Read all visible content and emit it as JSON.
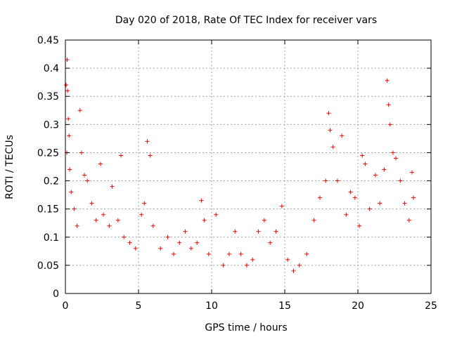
{
  "chart_data": {
    "type": "scatter",
    "title": "Day 020 of 2018, Rate Of TEC Index for receiver vars",
    "xlabel": "GPS time / hours",
    "ylabel": "ROTI / TECUs",
    "xlim": [
      0,
      25
    ],
    "ylim": [
      0,
      0.45
    ],
    "xticks": [
      0,
      5,
      10,
      15,
      20,
      25
    ],
    "xtick_labels": [
      "0",
      "5",
      "10",
      "15",
      "20",
      "25"
    ],
    "yticks": [
      0,
      0.05,
      0.1,
      0.15,
      0.2,
      0.25,
      0.3,
      0.35,
      0.4,
      0.45
    ],
    "ytick_labels": [
      "0",
      "0.05",
      "0.1",
      "0.15",
      "0.2",
      "0.25",
      "0.3",
      "0.35",
      "0.4",
      "0.45"
    ],
    "grid": true,
    "marker": "plus",
    "color": "#ff0000",
    "series": [
      {
        "name": "ROTI",
        "points": [
          [
            0.05,
            0.37
          ],
          [
            0.12,
            0.415
          ],
          [
            0.15,
            0.36
          ],
          [
            0.2,
            0.31
          ],
          [
            0.25,
            0.28
          ],
          [
            0.1,
            0.25
          ],
          [
            0.3,
            0.22
          ],
          [
            0.4,
            0.18
          ],
          [
            0.6,
            0.15
          ],
          [
            0.8,
            0.12
          ],
          [
            1.0,
            0.325
          ],
          [
            1.1,
            0.25
          ],
          [
            1.3,
            0.21
          ],
          [
            1.5,
            0.2
          ],
          [
            1.8,
            0.16
          ],
          [
            2.1,
            0.13
          ],
          [
            2.4,
            0.23
          ],
          [
            2.6,
            0.14
          ],
          [
            3.0,
            0.12
          ],
          [
            3.2,
            0.19
          ],
          [
            3.6,
            0.13
          ],
          [
            3.8,
            0.245
          ],
          [
            4.0,
            0.1
          ],
          [
            4.4,
            0.09
          ],
          [
            4.8,
            0.08
          ],
          [
            5.2,
            0.14
          ],
          [
            5.4,
            0.16
          ],
          [
            5.6,
            0.27
          ],
          [
            5.8,
            0.245
          ],
          [
            6.0,
            0.12
          ],
          [
            6.5,
            0.08
          ],
          [
            7.0,
            0.1
          ],
          [
            7.4,
            0.07
          ],
          [
            7.8,
            0.09
          ],
          [
            8.2,
            0.11
          ],
          [
            8.6,
            0.08
          ],
          [
            9.0,
            0.09
          ],
          [
            9.3,
            0.165
          ],
          [
            9.5,
            0.13
          ],
          [
            9.8,
            0.07
          ],
          [
            10.3,
            0.14
          ],
          [
            10.8,
            0.05
          ],
          [
            11.2,
            0.07
          ],
          [
            11.6,
            0.11
          ],
          [
            12.0,
            0.07
          ],
          [
            12.4,
            0.05
          ],
          [
            12.8,
            0.06
          ],
          [
            13.2,
            0.11
          ],
          [
            13.6,
            0.13
          ],
          [
            14.0,
            0.09
          ],
          [
            14.4,
            0.11
          ],
          [
            14.8,
            0.155
          ],
          [
            15.2,
            0.06
          ],
          [
            15.6,
            0.04
          ],
          [
            16.0,
            0.05
          ],
          [
            16.5,
            0.07
          ],
          [
            17.0,
            0.13
          ],
          [
            17.4,
            0.17
          ],
          [
            17.8,
            0.2
          ],
          [
            18.0,
            0.32
          ],
          [
            18.1,
            0.29
          ],
          [
            18.3,
            0.26
          ],
          [
            18.6,
            0.2
          ],
          [
            18.9,
            0.28
          ],
          [
            19.2,
            0.14
          ],
          [
            19.5,
            0.18
          ],
          [
            19.8,
            0.17
          ],
          [
            20.1,
            0.12
          ],
          [
            20.3,
            0.245
          ],
          [
            20.5,
            0.23
          ],
          [
            20.8,
            0.15
          ],
          [
            21.2,
            0.21
          ],
          [
            21.5,
            0.16
          ],
          [
            21.8,
            0.22
          ],
          [
            22.0,
            0.378
          ],
          [
            22.1,
            0.335
          ],
          [
            22.2,
            0.3
          ],
          [
            22.4,
            0.25
          ],
          [
            22.6,
            0.24
          ],
          [
            22.9,
            0.2
          ],
          [
            23.2,
            0.16
          ],
          [
            23.5,
            0.13
          ],
          [
            23.7,
            0.215
          ],
          [
            23.8,
            0.17
          ]
        ]
      }
    ]
  }
}
